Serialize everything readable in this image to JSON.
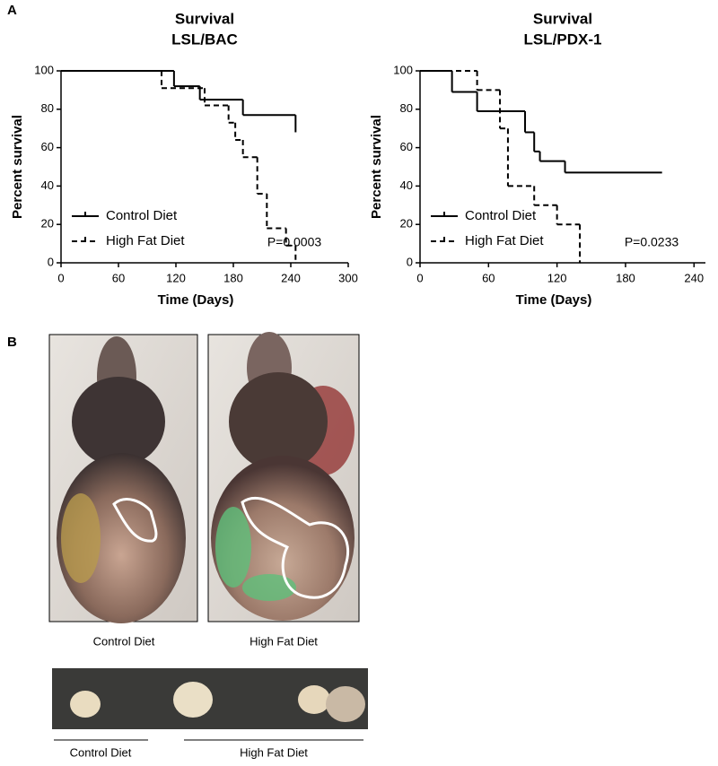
{
  "panel_labels": [
    "A",
    "B"
  ],
  "chart_data": [
    {
      "type": "line",
      "title": "Survival",
      "subtitle": "LSL/BAC",
      "xlabel": "Time (Days)",
      "ylabel": "Percent survival",
      "annotation": "P=0.0003",
      "xlim": [
        0,
        300
      ],
      "ylim": [
        0,
        100
      ],
      "xticks": [
        0,
        60,
        120,
        180,
        240,
        300
      ],
      "yticks": [
        0,
        20,
        40,
        60,
        80,
        100
      ],
      "step": true,
      "legend": "lower left",
      "series": [
        {
          "name": "Control Diet",
          "color": "#000000",
          "dashed": false,
          "x": [
            0,
            118,
            145,
            190,
            245
          ],
          "values": [
            100,
            92,
            85,
            77,
            68
          ]
        },
        {
          "name": "High Fat Diet",
          "color": "#000000",
          "dashed": true,
          "x": [
            0,
            105,
            150,
            175,
            182,
            190,
            205,
            215,
            235,
            245
          ],
          "values": [
            100,
            91,
            82,
            73,
            64,
            55,
            36,
            18,
            9,
            0
          ]
        }
      ]
    },
    {
      "type": "line",
      "title": "Survival",
      "subtitle": "LSL/PDX-1",
      "xlabel": "Time (Days)",
      "ylabel": "Percent survival",
      "annotation": "P=0.0233",
      "xlim": [
        0,
        250
      ],
      "ylim": [
        0,
        100
      ],
      "xticks": [
        0,
        60,
        120,
        180,
        240
      ],
      "yticks": [
        0,
        20,
        40,
        60,
        80,
        100
      ],
      "step": true,
      "legend": "lower left",
      "series": [
        {
          "name": "Control Diet",
          "color": "#000000",
          "dashed": false,
          "x": [
            0,
            28,
            50,
            92,
            100,
            105,
            127,
            212
          ],
          "values": [
            100,
            89,
            79,
            68,
            58,
            53,
            47,
            47
          ]
        },
        {
          "name": "High Fat Diet",
          "color": "#000000",
          "dashed": true,
          "x": [
            0,
            50,
            70,
            77,
            100,
            120,
            140
          ],
          "values": [
            100,
            90,
            70,
            40,
            30,
            20,
            0
          ]
        }
      ]
    }
  ],
  "photos": {
    "captions": [
      "Control Diet",
      "High Fat Diet"
    ],
    "tumor_captions": [
      "Control Diet",
      "High Fat Diet"
    ]
  }
}
